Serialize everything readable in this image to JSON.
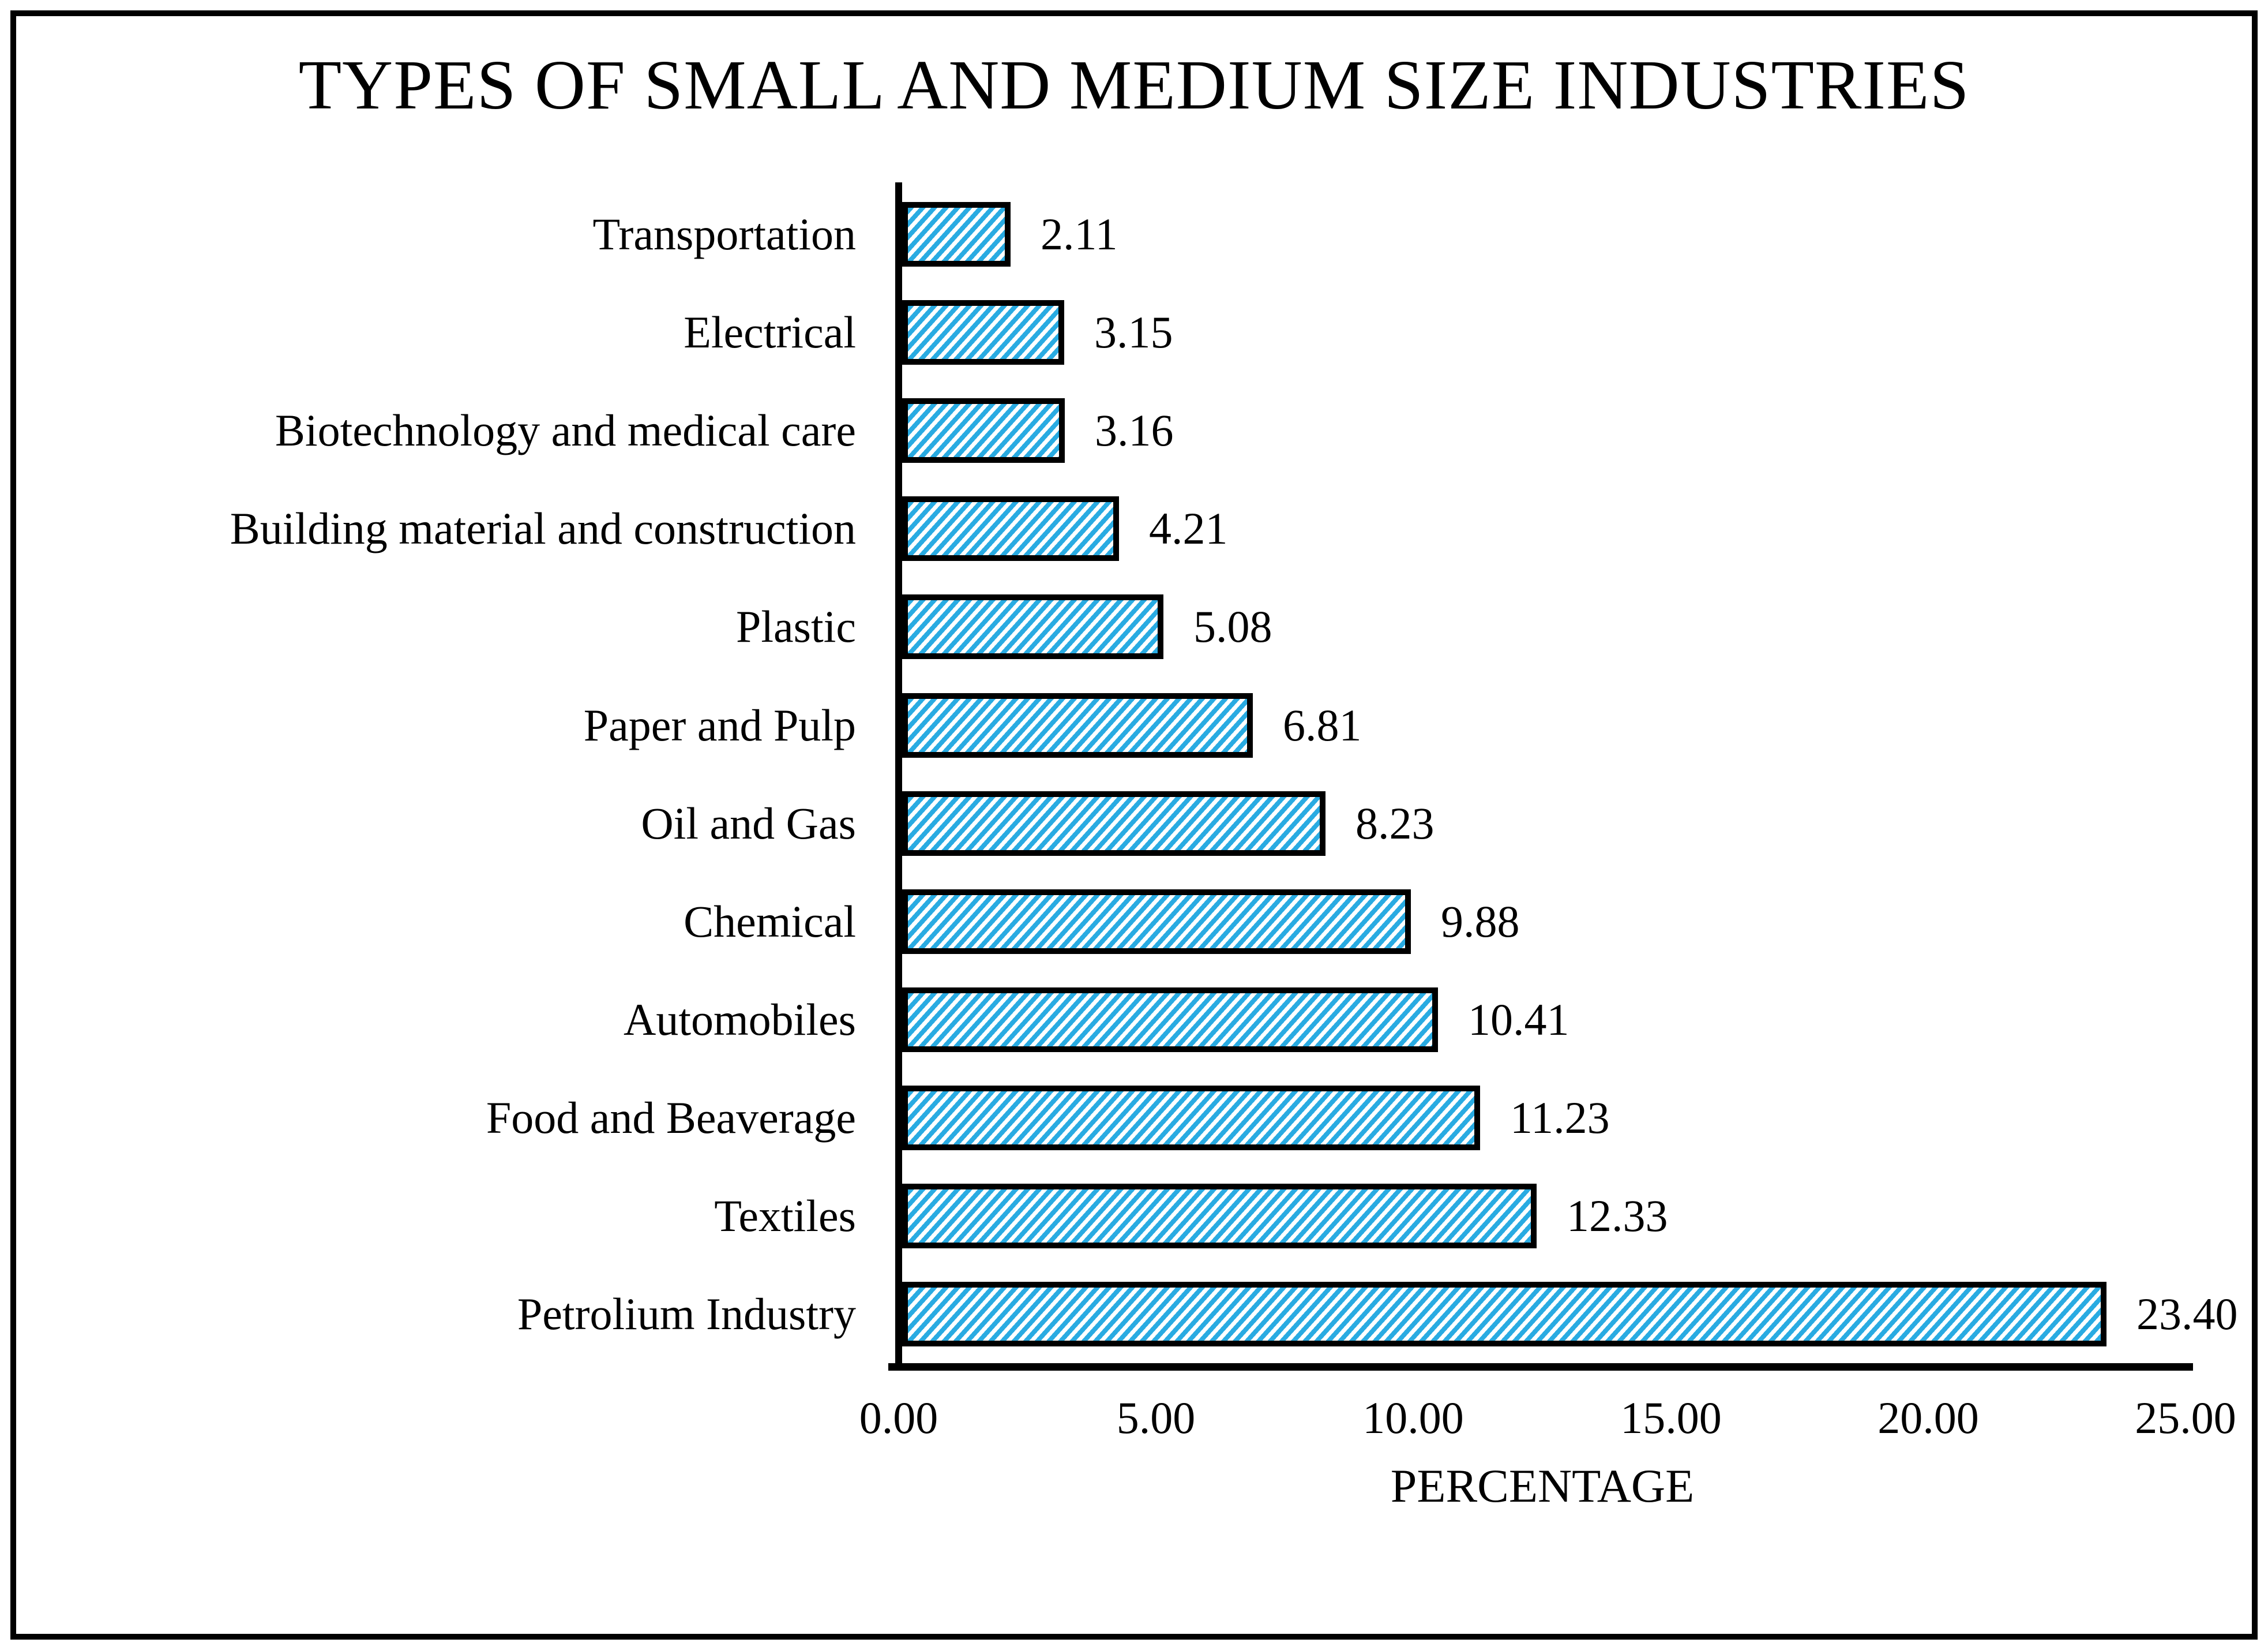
{
  "title": "TYPES OF SMALL AND MEDIUM SIZE INDUSTRIES",
  "colors": {
    "bar_fill": "#29ABE2",
    "bar_stripe": "#FFFFFF",
    "outline": "#000000",
    "background": "#FFFFFF"
  },
  "chart_data": {
    "type": "bar",
    "orientation": "horizontal",
    "title": "TYPES OF SMALL AND MEDIUM SIZE INDUSTRIES",
    "xlabel": "PERCENTAGE",
    "ylabel": "",
    "categories": [
      "Transportation",
      "Electrical",
      "Biotechnology and medical care",
      "Building material and construction",
      "Plastic",
      "Paper and Pulp",
      "Oil and Gas",
      "Chemical",
      "Automobiles",
      "Food and Beaverage",
      "Textiles",
      "Petrolium Industry"
    ],
    "values": [
      2.11,
      3.15,
      3.16,
      4.21,
      5.08,
      6.81,
      8.23,
      9.88,
      10.41,
      11.23,
      12.33,
      23.4
    ],
    "data_labels": [
      "2.11",
      "3.15",
      "3.16",
      "4.21",
      "5.08",
      "6.81",
      "8.23",
      "9.88",
      "10.41",
      "11.23",
      "12.33",
      "23.40"
    ],
    "xlim": [
      0,
      25
    ],
    "xtick_labels": [
      "0.00",
      "5.00",
      "10.00",
      "15.00",
      "20.00",
      "25.00"
    ],
    "xtick_values": [
      0,
      5,
      10,
      15,
      20,
      25
    ],
    "grid": "off",
    "legend": "none",
    "bar_pattern": "diagonal-stripes"
  }
}
